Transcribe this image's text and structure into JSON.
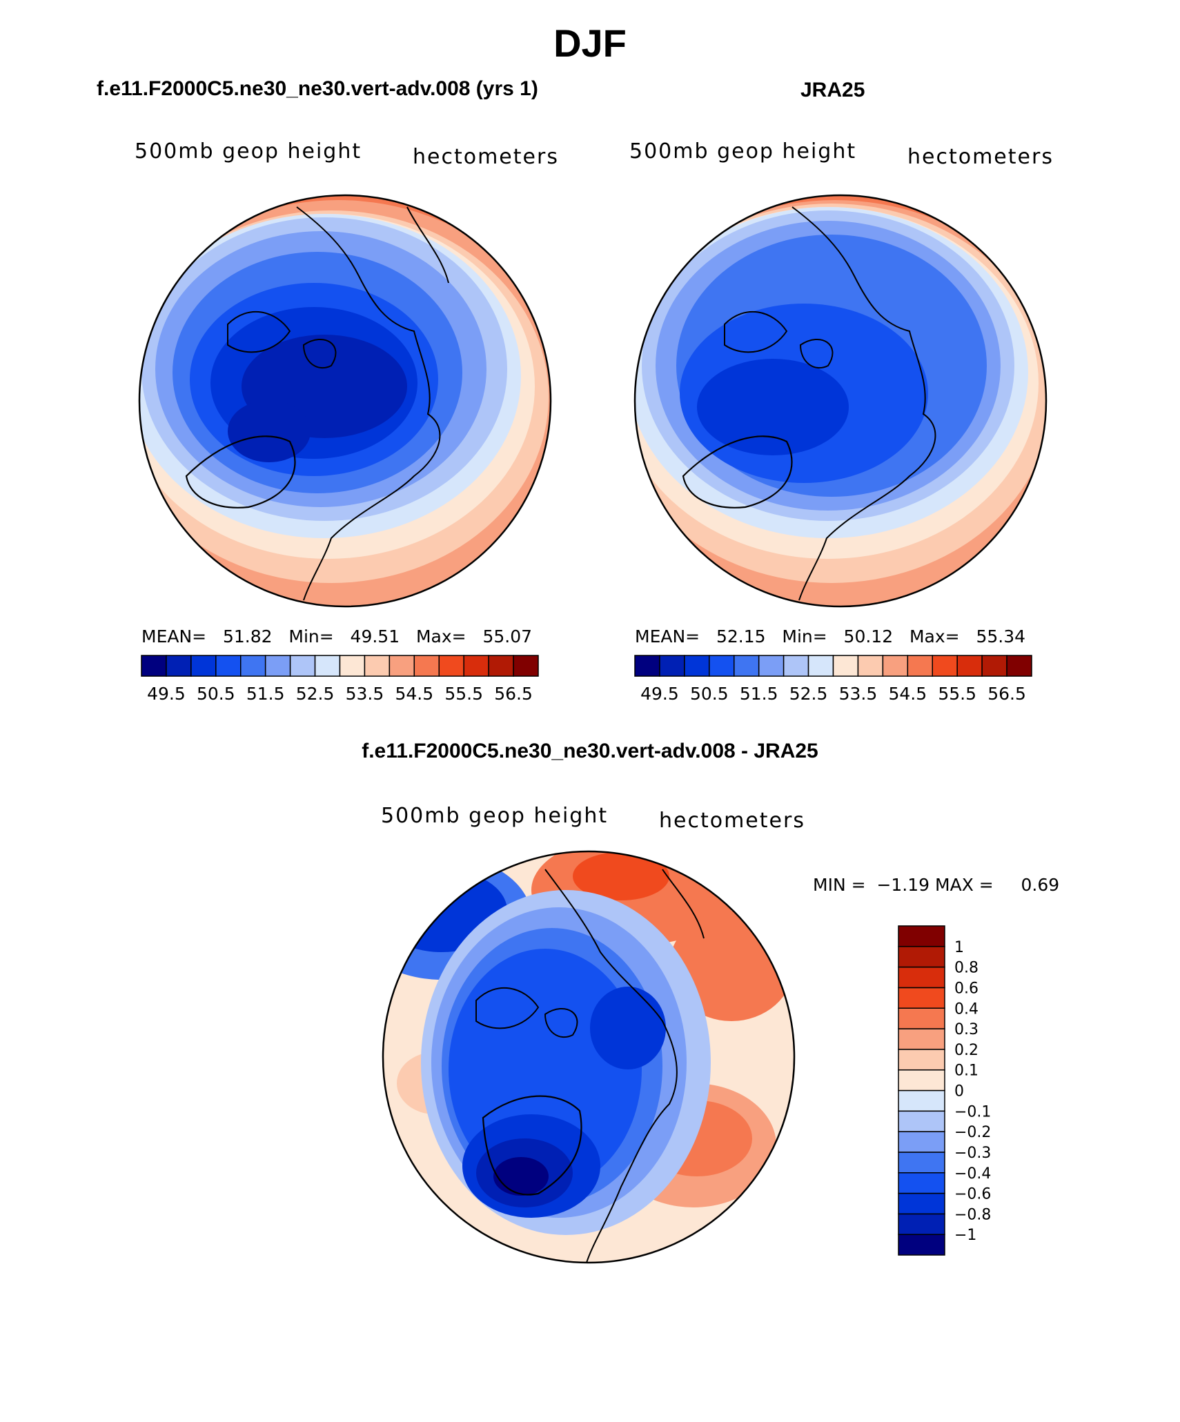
{
  "figure": {
    "title": "DJF"
  },
  "panels": [
    {
      "id": "model",
      "title": "f.e11.F2000C5.ne30_ne30.vert-adv.008 (yrs 1)",
      "left_label": "500mb geop height",
      "right_label": "hectometers",
      "stats": {
        "mean_label": "MEAN=",
        "mean": "51.82",
        "min_label": "Min=",
        "min": "49.51",
        "max_label": "Max=",
        "max": "55.07"
      }
    },
    {
      "id": "obs",
      "title": "JRA25",
      "left_label": "500mb geop height",
      "right_label": "hectometers",
      "stats": {
        "mean_label": "MEAN=",
        "mean": "52.15",
        "min_label": "Min=",
        "min": "50.12",
        "max_label": "Max=",
        "max": "55.34"
      }
    },
    {
      "id": "diff",
      "title": "f.e11.F2000C5.ne30_ne30.vert-adv.008 - JRA25",
      "left_label": "500mb geop height",
      "right_label": "hectometers",
      "stats": {
        "min_label": "MIN =",
        "min": "−1.19",
        "max_label": "MAX =",
        "max": "0.69"
      }
    }
  ],
  "colorbars": {
    "abs": {
      "colors": [
        "#00007f",
        "#0020b4",
        "#0035d8",
        "#1451f0",
        "#3f75f2",
        "#7b9ef6",
        "#aec5f8",
        "#d6e6fb",
        "#fde7d5",
        "#fccbb0",
        "#f8a07f",
        "#f57850",
        "#f04a1e",
        "#d82d0c",
        "#b11a05",
        "#800000"
      ],
      "ticks": [
        "49.5",
        "50.5",
        "51.5",
        "52.5",
        "53.5",
        "54.5",
        "55.5",
        "56.5"
      ]
    },
    "diff": {
      "colors": [
        "#00007f",
        "#0020b4",
        "#0035d8",
        "#1451f0",
        "#3f75f2",
        "#7b9ef6",
        "#aec5f8",
        "#d6e6fb",
        "#fde7d5",
        "#fccbb0",
        "#f8a07f",
        "#f57850",
        "#f04a1e",
        "#d82d0c",
        "#b11a05",
        "#800000"
      ],
      "ticks": [
        "−1",
        "−0.8",
        "−0.6",
        "−0.4",
        "−0.3",
        "−0.2",
        "−0.1",
        "0",
        "0.1",
        "0.2",
        "0.3",
        "0.4",
        "0.6",
        "0.8",
        "1"
      ]
    }
  }
}
